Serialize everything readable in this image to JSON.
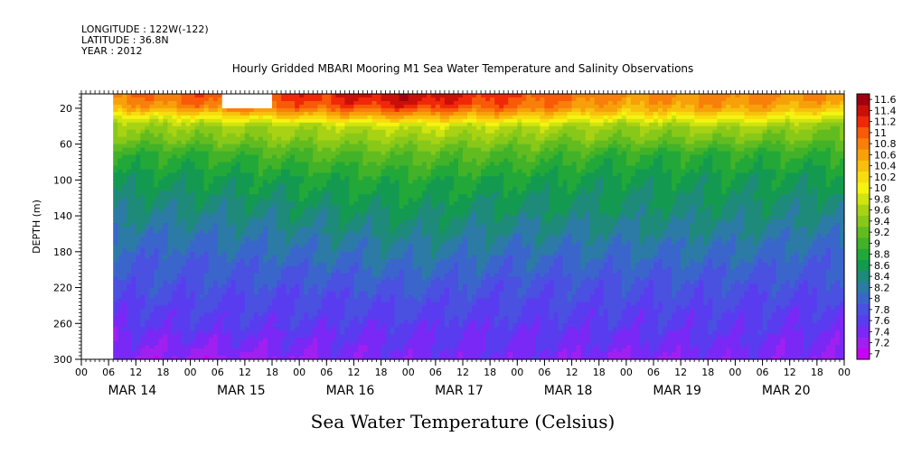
{
  "meta": {
    "longitude": "LONGITUDE : 122W(-122)",
    "latitude": "LATITUDE : 36.8N",
    "year": "YEAR : 2012"
  },
  "chart_data": {
    "type": "heatmap",
    "title": "Hourly Gridded MBARI Mooring M1 Sea Water Temperature and Salinity Observations",
    "xlabel": "Sea Water Temperature (Celsius)",
    "ylabel": "DEPTH (m)",
    "x_range_hours": [
      0,
      168
    ],
    "x_start": "2012-03-14 00:00",
    "data_start_hour": 7,
    "y_range": [
      300,
      4
    ],
    "y_ticks": [
      20,
      60,
      100,
      140,
      180,
      220,
      260,
      300
    ],
    "x_hour_ticks": [
      "00",
      "06",
      "12",
      "18",
      "00",
      "06",
      "12",
      "18",
      "00",
      "06",
      "12",
      "18",
      "00",
      "06",
      "12",
      "18",
      "00",
      "06",
      "12",
      "18",
      "00",
      "06",
      "12",
      "18",
      "00",
      "06",
      "12",
      "18",
      "00"
    ],
    "x_day_labels": [
      "MAR 14",
      "MAR 15",
      "MAR 16",
      "MAR 17",
      "MAR 18",
      "MAR 19",
      "MAR 20"
    ],
    "missing_block": {
      "hours": [
        31,
        42
      ],
      "depth": [
        4,
        20
      ]
    },
    "color_levels": [
      7,
      7.2,
      7.4,
      7.6,
      7.8,
      8,
      8.2,
      8.4,
      8.6,
      8.8,
      9,
      9.2,
      9.4,
      9.6,
      9.8,
      10,
      10.2,
      10.4,
      10.6,
      10.8,
      11,
      11.2,
      11.4,
      11.6
    ],
    "colorbar_labels": [
      "7",
      "7.2",
      "7.4",
      "7.6",
      "7.8",
      "8",
      "8.2",
      "8.4",
      "8.6",
      "8.8",
      "9",
      "9.2",
      "9.4",
      "9.6",
      "9.8",
      "10",
      "10.2",
      "10.4",
      "10.6",
      "10.8",
      "11",
      "11.2",
      "11.4",
      "11.6"
    ],
    "colors": [
      "#c800f5",
      "#a020f0",
      "#7a28f5",
      "#5a3cf0",
      "#4a50e0",
      "#3a66cc",
      "#2c7aa6",
      "#1e8a7a",
      "#149a50",
      "#22a838",
      "#42b228",
      "#62bc20",
      "#88c818",
      "#a8d214",
      "#d0e410",
      "#f4f410",
      "#f8dc10",
      "#f8c00c",
      "#f8a00a",
      "#f8800a",
      "#f85a08",
      "#f02808",
      "#c81008",
      "#a00010"
    ],
    "profile_hours": [
      7,
      24,
      48,
      72,
      96,
      120,
      144,
      168
    ],
    "profile_depths": [
      4,
      12,
      20,
      30,
      40,
      55,
      70,
      100,
      140,
      180,
      220,
      260,
      300
    ],
    "profiles": [
      [
        10.9,
        10.8,
        10.6,
        10.0,
        9.6,
        9.4,
        9.0,
        8.7,
        8.4,
        8.1,
        7.9,
        7.6,
        7.4
      ],
      [
        11.1,
        11.0,
        10.8,
        10.1,
        9.6,
        9.4,
        9.0,
        8.7,
        8.4,
        8.1,
        7.9,
        7.7,
        7.3
      ],
      [
        11.3,
        11.2,
        11.0,
        10.4,
        9.7,
        9.5,
        9.2,
        8.8,
        8.5,
        8.2,
        7.9,
        7.7,
        7.4
      ],
      [
        11.6,
        11.5,
        11.2,
        10.6,
        9.9,
        9.6,
        9.3,
        8.9,
        8.6,
        8.3,
        8.0,
        7.7,
        7.5
      ],
      [
        11.2,
        11.1,
        11.0,
        10.4,
        9.8,
        9.5,
        9.2,
        8.8,
        8.5,
        8.2,
        7.9,
        7.7,
        7.5
      ],
      [
        10.8,
        10.7,
        10.6,
        10.1,
        9.6,
        9.4,
        9.0,
        8.7,
        8.5,
        8.2,
        7.9,
        7.7,
        7.4
      ],
      [
        10.9,
        10.8,
        10.7,
        10.2,
        9.7,
        9.4,
        9.0,
        8.7,
        8.5,
        8.2,
        7.9,
        7.7,
        7.5
      ],
      [
        10.8,
        10.7,
        10.5,
        10.0,
        9.5,
        9.3,
        9.0,
        8.7,
        8.4,
        8.1,
        7.9,
        7.6,
        7.4
      ]
    ]
  }
}
